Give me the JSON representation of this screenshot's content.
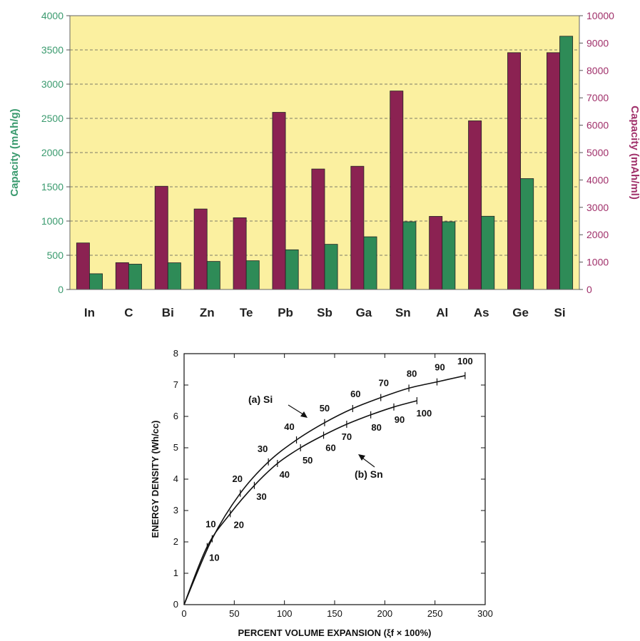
{
  "colors": {
    "series_gravimetric": "#2e8b57",
    "series_volumetric": "#8b2252",
    "plot_background": "#fbf0a0",
    "left_axis_color": "#3a9a6e",
    "right_axis_color": "#a0306a"
  },
  "chart_data": [
    {
      "type": "bar",
      "categories": [
        "In",
        "C",
        "Bi",
        "Zn",
        "Te",
        "Pb",
        "Sb",
        "Ga",
        "Sn",
        "Al",
        "As",
        "Ge",
        "Si"
      ],
      "series": [
        {
          "axis": "right",
          "values": [
            1700,
            980,
            3770,
            2940,
            2620,
            6470,
            4400,
            4500,
            7250,
            2670,
            6160,
            8650,
            8650
          ]
        },
        {
          "axis": "left",
          "values": [
            230,
            370,
            390,
            410,
            420,
            580,
            660,
            770,
            990,
            990,
            1070,
            1620,
            3700
          ]
        }
      ],
      "ylabel_left": "Capacity (mAh/g)",
      "ylabel_right": "Capacity (mAh/ml)",
      "ylim_left": [
        0,
        4000
      ],
      "ylim_right": [
        0,
        10000
      ],
      "yticks_left": [
        "0",
        "500",
        "1000",
        "1500",
        "2000",
        "2500",
        "3000",
        "3500",
        "4000"
      ],
      "yticks_right": [
        "0",
        "1000",
        "2000",
        "3000",
        "4000",
        "5000",
        "6000",
        "7000",
        "8000",
        "9000",
        "10000"
      ],
      "grid": "horizontal dashed"
    },
    {
      "type": "line",
      "xlabel": "PERCENT VOLUME EXPANSION (ξf × 100%)",
      "ylabel": "ENERGY DENSITY (Wh/cc)",
      "xlim": [
        0,
        300
      ],
      "ylim": [
        0,
        8
      ],
      "xticks": [
        "0",
        "50",
        "100",
        "150",
        "200",
        "250",
        "300"
      ],
      "yticks": [
        "0",
        "1",
        "2",
        "3",
        "4",
        "5",
        "6",
        "7",
        "8"
      ],
      "series": [
        {
          "name": "(a) Si",
          "points": [
            [
              0,
              0
            ],
            [
              28,
              2.1
            ],
            [
              56,
              3.55
            ],
            [
              84,
              4.55
            ],
            [
              112,
              5.25
            ],
            [
              140,
              5.8
            ],
            [
              168,
              6.25
            ],
            [
              196,
              6.6
            ],
            [
              224,
              6.9
            ],
            [
              252,
              7.1
            ],
            [
              280,
              7.3
            ]
          ],
          "point_labels": [
            "",
            "10",
            "20",
            "30",
            "40",
            "50",
            "60",
            "70",
            "80",
            "90",
            "100"
          ]
        },
        {
          "name": "(b) Sn",
          "points": [
            [
              0,
              0
            ],
            [
              23,
              1.85
            ],
            [
              46,
              2.9
            ],
            [
              70,
              3.8
            ],
            [
              93,
              4.5
            ],
            [
              116,
              5.0
            ],
            [
              139,
              5.4
            ],
            [
              162,
              5.75
            ],
            [
              186,
              6.05
            ],
            [
              209,
              6.3
            ],
            [
              232,
              6.5
            ]
          ],
          "point_labels": [
            "",
            "10",
            "20",
            "30",
            "40",
            "50",
            "60",
            "70",
            "80",
            "90",
            "100"
          ]
        }
      ]
    }
  ]
}
